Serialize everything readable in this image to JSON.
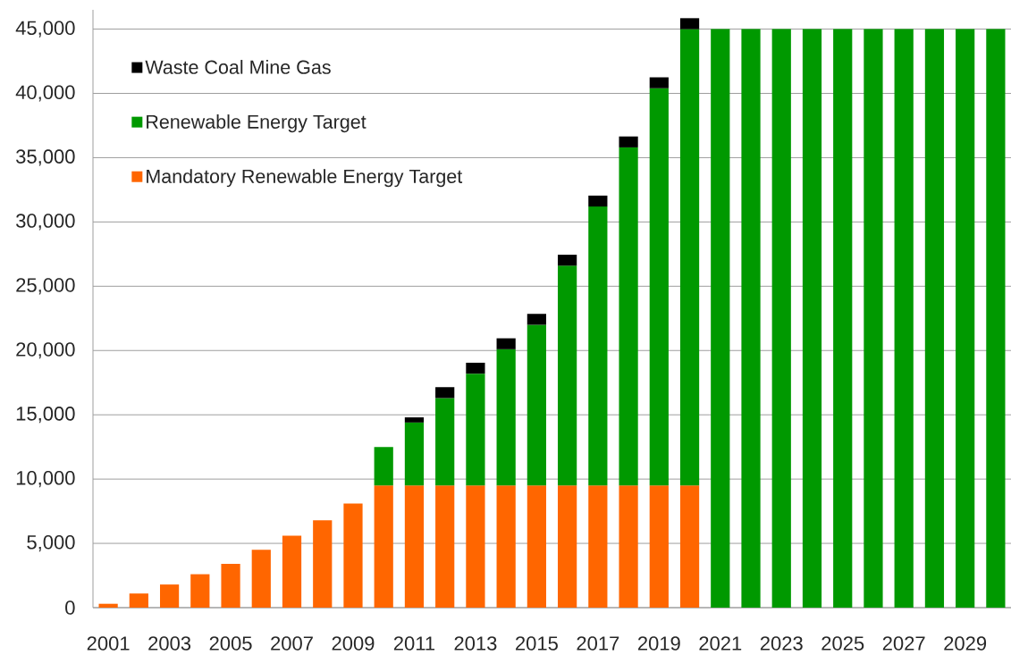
{
  "chart_data": {
    "type": "bar",
    "stacked": true,
    "categories": [
      "2001",
      null,
      "2003",
      null,
      "2005",
      null,
      "2007",
      null,
      "2009",
      null,
      "2011",
      null,
      "2013",
      null,
      "2015",
      null,
      "2017",
      null,
      "2019",
      null,
      "2021",
      null,
      "2023",
      null,
      "2025",
      null,
      "2027",
      null,
      "2029",
      null
    ],
    "series": [
      {
        "name": "Mandatory Renewable Energy Target",
        "color": "#ff6600",
        "values": [
          300,
          1100,
          1800,
          2600,
          3400,
          4500,
          5600,
          6800,
          8100,
          9500,
          9500,
          9500,
          9500,
          9500,
          9500,
          9500,
          9500,
          9500,
          9500,
          9500,
          null,
          null,
          null,
          null,
          null,
          null,
          null,
          null,
          null,
          null
        ]
      },
      {
        "name": "Renewable Energy Target",
        "color": "#009900",
        "values": [
          null,
          null,
          null,
          null,
          null,
          null,
          null,
          null,
          null,
          3000,
          4900,
          6800,
          8700,
          10600,
          12500,
          17100,
          21700,
          26300,
          30900,
          35500,
          45000,
          45000,
          45000,
          45000,
          45000,
          45000,
          45000,
          45000,
          45000,
          45000
        ]
      },
      {
        "name": "Waste Coal Mine Gas",
        "color": "#000000",
        "values": [
          null,
          null,
          null,
          null,
          null,
          null,
          null,
          null,
          null,
          null,
          400,
          850,
          850,
          850,
          850,
          850,
          850,
          850,
          850,
          850,
          null,
          null,
          null,
          null,
          null,
          null,
          null,
          null,
          null,
          null
        ]
      }
    ],
    "ylim": [
      0,
      46500
    ],
    "yticks": [
      0,
      {
        "value": 5000,
        "label": "5,000"
      },
      {
        "value": 10000,
        "label": "10,000"
      },
      {
        "value": 15000,
        "label": "15,000"
      },
      {
        "value": 20000,
        "label": "20,000"
      },
      {
        "value": 25000,
        "label": "25,000"
      },
      {
        "value": 30000,
        "label": "30,000"
      },
      {
        "value": 35000,
        "label": "35,000"
      },
      {
        "value": 40000,
        "label": "40,000"
      },
      {
        "value": 45000,
        "label": "45,000"
      }
    ],
    "grid": "y",
    "legend": "top left"
  }
}
